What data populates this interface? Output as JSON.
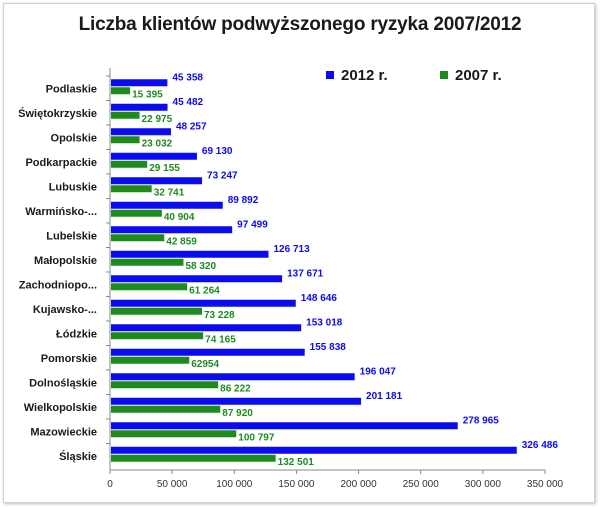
{
  "chart_data": {
    "type": "bar",
    "orientation": "horizontal",
    "title": "Liczba klientów podwyższonego ryzyka 2007/2012",
    "xlabel": "",
    "ylabel": "",
    "xlim": [
      0,
      350000
    ],
    "x_ticks": [
      "0",
      "50 000",
      "100 000",
      "150 000",
      "200 000",
      "250 000",
      "300 000",
      "350 000"
    ],
    "grid": false,
    "legend_position": "top-right",
    "categories": [
      "Podlaskie",
      "Świętokrzyskie",
      "Opolskie",
      "Podkarpackie",
      "Lubuskie",
      "Warmińsko-...",
      "Lubelskie",
      "Małopolskie",
      "Zachodniopo...",
      "Kujawsko-...",
      "Łódzkie",
      "Pomorskie",
      "Dolnośląskie",
      "Wielkopolskie",
      "Mazowieckie",
      "Śląskie"
    ],
    "series": [
      {
        "name": "2012 r.",
        "color": "#0b0bf0",
        "values": [
          45358,
          45482,
          48257,
          69130,
          73247,
          89892,
          97499,
          126713,
          137671,
          148646,
          153018,
          155838,
          196047,
          201181,
          278965,
          326486
        ],
        "labels": [
          "45 358",
          "45 482",
          "48 257",
          "69 130",
          "73 247",
          "89 892",
          "97 499",
          "126 713",
          "137 671",
          "148 646",
          "153 018",
          "155 838",
          "196 047",
          "201 181",
          "278 965",
          "326 486"
        ]
      },
      {
        "name": "2007 r.",
        "color": "#1e8a1e",
        "values": [
          15395,
          22975,
          23032,
          29155,
          32741,
          40904,
          42859,
          58320,
          61264,
          73228,
          74165,
          62954,
          86222,
          87920,
          100797,
          132501
        ],
        "labels": [
          "15 395",
          "22 975",
          "23 032",
          "29 155",
          "32 741",
          "40 904",
          "42 859",
          "58 320",
          "61 264",
          "73 228",
          "74 165",
          "62954",
          "86 222",
          "87 920",
          "100 797",
          "132 501"
        ]
      }
    ]
  }
}
